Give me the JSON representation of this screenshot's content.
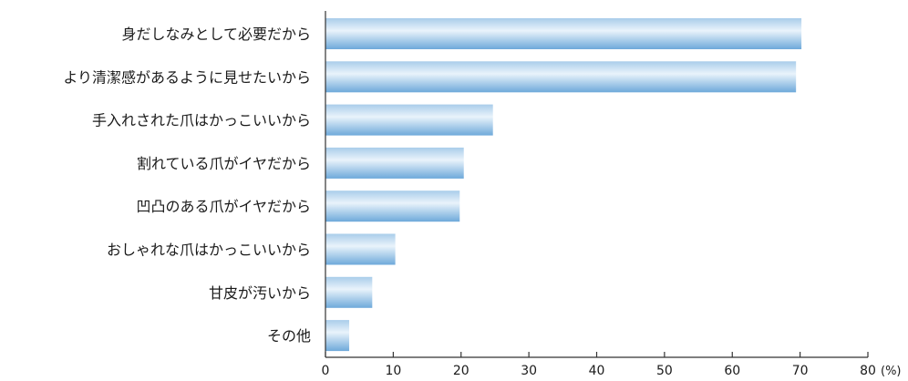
{
  "chart_data": {
    "type": "bar",
    "orientation": "horizontal",
    "categories": [
      "身だしなみとして必要だから",
      "より清潔感があるように見せたいから",
      "手入れされた爪はかっこいいから",
      "割れている爪がイヤだから",
      "凹凸のある爪がイヤだから",
      "おしゃれな爪はかっこいいから",
      "甘皮が汚いから",
      "その他"
    ],
    "values": [
      70.2,
      69.4,
      24.7,
      20.4,
      19.8,
      10.3,
      6.9,
      3.5
    ],
    "xlim": [
      0,
      80
    ],
    "xticks": [
      0,
      10,
      20,
      30,
      40,
      50,
      60,
      70,
      80
    ],
    "x_unit": "(%)",
    "grid": false,
    "legend": "none",
    "bar_gradient": [
      "#a9cdea",
      "#e9f3fb",
      "#6ea9da"
    ]
  }
}
